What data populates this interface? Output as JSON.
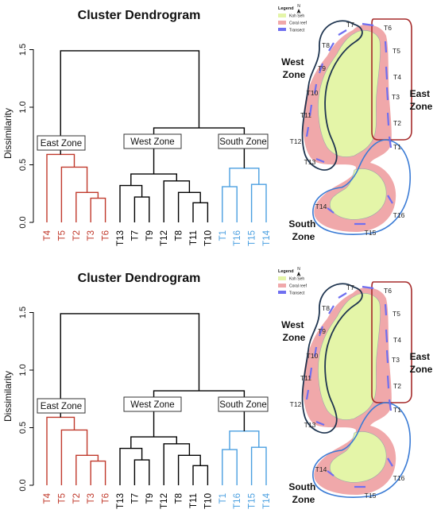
{
  "panels": [
    {
      "dendrogram": {
        "title": "Cluster Dendrogram",
        "ylabel": "Dissimilarity",
        "yticks": [
          "0.0",
          "0.5",
          "1.0",
          "1.5"
        ],
        "zone_labels": {
          "east": "East Zone",
          "west": "West Zone",
          "south": "South Zone"
        },
        "leaves": [
          "T4",
          "T5",
          "T2",
          "T3",
          "T6",
          "T13",
          "T7",
          "T9",
          "T12",
          "T8",
          "T11",
          "T10",
          "T1",
          "T16",
          "T15",
          "T14"
        ]
      },
      "map": {
        "legend_title": "Legend",
        "north": "N",
        "legend_items": [
          "Koh Seh",
          "Coral reef",
          "Transect"
        ],
        "zones": {
          "west": [
            "West",
            "Zone"
          ],
          "east": [
            "East",
            "Zone"
          ],
          "south": [
            "South",
            "Zone"
          ]
        },
        "transects": [
          "T1",
          "T2",
          "T3",
          "T4",
          "T5",
          "T6",
          "T7",
          "T8",
          "T9",
          "T10",
          "T11",
          "T12",
          "T13",
          "T14",
          "T15",
          "T16"
        ]
      }
    },
    {
      "dendrogram": {
        "title": "Cluster Dendrogram",
        "ylabel": "Dissimilarity",
        "yticks": [
          "0.0",
          "0.5",
          "1.0",
          "1.5"
        ],
        "zone_labels": {
          "east": "East Zone",
          "west": "West Zone",
          "south": "South Zone"
        },
        "leaves": [
          "T4",
          "T5",
          "T2",
          "T3",
          "T6",
          "T13",
          "T7",
          "T9",
          "T12",
          "T8",
          "T11",
          "T10",
          "T1",
          "T16",
          "T15",
          "T14"
        ]
      },
      "map": {
        "legend_title": "Legend",
        "north": "N",
        "legend_items": [
          "Koh Seh",
          "Coral reef",
          "Transect"
        ],
        "zones": {
          "west": [
            "West",
            "Zone"
          ],
          "east": [
            "East",
            "Zone"
          ],
          "south": [
            "South",
            "Zone"
          ]
        },
        "transects": [
          "T1",
          "T2",
          "T3",
          "T4",
          "T5",
          "T6",
          "T7",
          "T8",
          "T9",
          "T10",
          "T11",
          "T12",
          "T13",
          "T14",
          "T15",
          "T16"
        ]
      }
    }
  ],
  "colors": {
    "east": "#c0392b",
    "west": "#000000",
    "south": "#4a9fe0",
    "island": "#e4f5a8",
    "reef": "#f0a8aa",
    "transect": "#6f6ff0",
    "west_outline": "#1f3550",
    "east_outline": "#a52a2a",
    "south_outline": "#3a7bd5"
  }
}
